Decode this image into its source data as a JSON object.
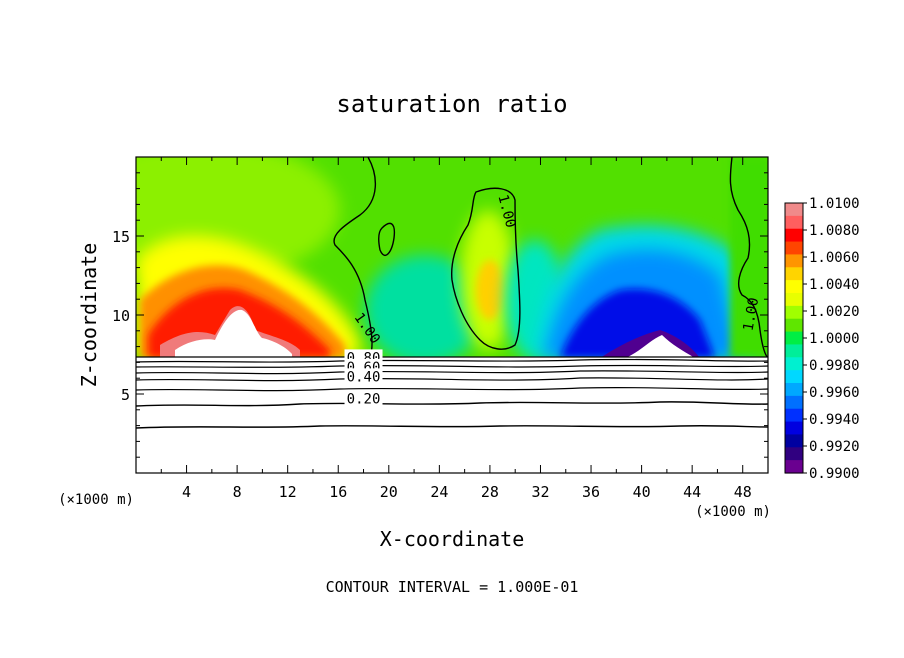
{
  "chart_data": {
    "type": "heatmap",
    "title": "saturation ratio",
    "xlabel": "X-coordinate",
    "ylabel": "Z-coordinate",
    "x_unit": "(×1000 m)",
    "x_unit_right": "(×1000 m)",
    "xlim": [
      0,
      50
    ],
    "ylim": [
      0,
      20
    ],
    "x_ticks": [
      4,
      8,
      12,
      16,
      20,
      24,
      28,
      32,
      36,
      40,
      44,
      48
    ],
    "y_ticks": [
      5,
      10,
      15
    ],
    "footer": "CONTOUR INTERVAL = 1.000E-01",
    "colorbar": {
      "levels": [
        "1.0100",
        "1.0080",
        "1.0060",
        "1.0040",
        "1.0020",
        "1.0000",
        "0.9980",
        "0.9960",
        "0.9940",
        "0.9920",
        "0.9900"
      ],
      "colors": [
        "#f08a8a",
        "#ff5f5f",
        "#ff0000",
        "#ff4500",
        "#ff9500",
        "#ffd400",
        "#ffff00",
        "#e8ff00",
        "#a0ff00",
        "#5fe600",
        "#00ee44",
        "#00ee99",
        "#00f0d0",
        "#00d8ff",
        "#00a8ff",
        "#0070ff",
        "#0030ff",
        "#0000e0",
        "#0000a0",
        "#300080",
        "#6a0090"
      ]
    },
    "contour_labels": [
      {
        "text": "1.00",
        "x": 18,
        "z": 9.0
      },
      {
        "text": "1.00",
        "x": 29,
        "z": 16.5
      },
      {
        "text": "1.00",
        "x": 49,
        "z": 10.0
      },
      {
        "text": "0.80",
        "x": 18,
        "z": 7.0
      },
      {
        "text": "0.60",
        "x": 18,
        "z": 6.4
      },
      {
        "text": "0.40",
        "x": 18,
        "z": 5.8
      },
      {
        "text": "0.20",
        "x": 18,
        "z": 4.4
      }
    ],
    "subsaturated_contours": [
      0.8,
      0.6,
      0.4,
      0.2
    ]
  }
}
